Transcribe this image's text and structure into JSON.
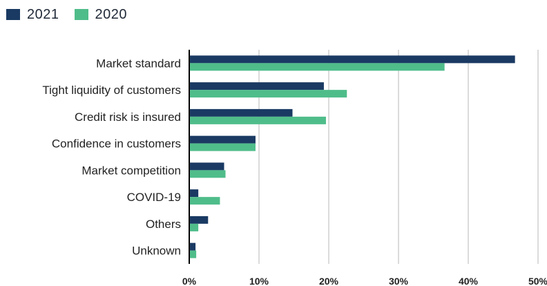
{
  "chart_data": {
    "type": "bar",
    "orientation": "horizontal",
    "title": "",
    "xlabel": "",
    "ylabel": "",
    "categories": [
      "Market standard",
      "Tight liquidity of customers",
      "Credit risk is insured",
      "Confidence in customers",
      "Market competition",
      "COVID-19",
      "Others",
      "Unknown"
    ],
    "series": [
      {
        "name": "2021",
        "color": "#1a3a63",
        "values": [
          46.7,
          19.3,
          14.8,
          9.5,
          5.0,
          1.3,
          2.7,
          0.9
        ]
      },
      {
        "name": "2020",
        "color": "#4fbd8a",
        "values": [
          36.6,
          22.6,
          19.6,
          9.5,
          5.2,
          4.4,
          1.3,
          1.0
        ]
      }
    ],
    "xlim": [
      0,
      50
    ],
    "xticks": [
      "0%",
      "10%",
      "20%",
      "30%",
      "40%",
      "50%"
    ],
    "grid": "vertical",
    "legend_position": "top-left"
  }
}
